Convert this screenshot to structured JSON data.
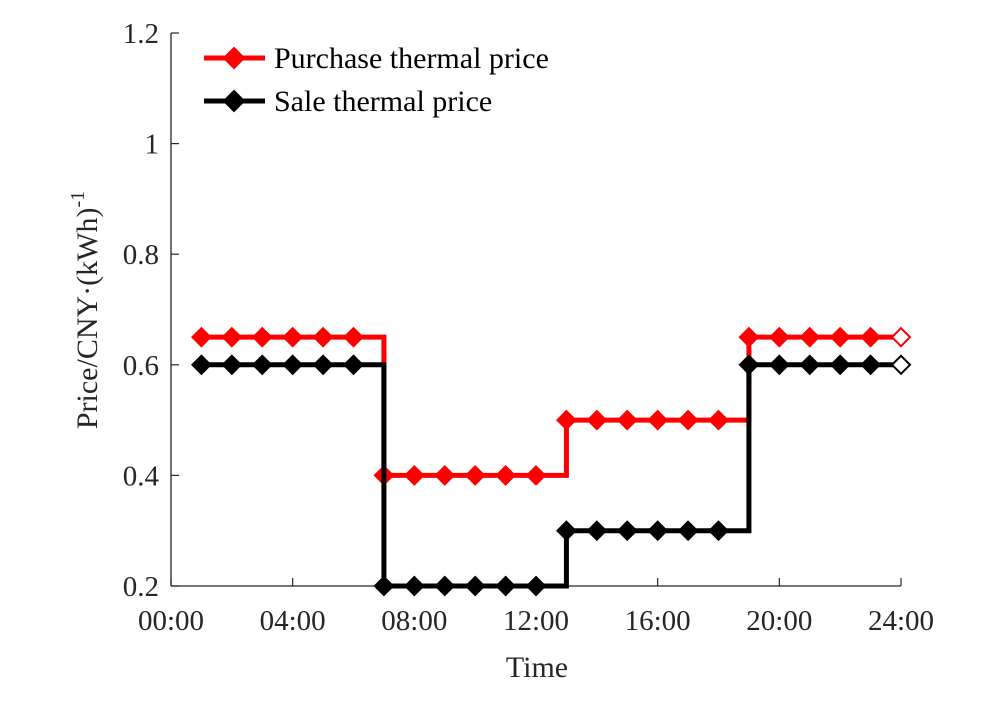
{
  "chart_data": {
    "type": "line",
    "step": "post",
    "xlabel": "Time",
    "ylabel": "Price/CNY·(kWh)",
    "ylabel_superscript": "-1",
    "xlim": [
      0,
      24
    ],
    "ylim": [
      0.2,
      1.2
    ],
    "x_ticks": [
      0,
      4,
      8,
      12,
      16,
      20,
      24
    ],
    "x_tick_labels": [
      "00:00",
      "04:00",
      "08:00",
      "12:00",
      "16:00",
      "20:00",
      "24:00"
    ],
    "y_ticks": [
      0.2,
      0.4,
      0.6,
      0.8,
      1.0,
      1.2
    ],
    "y_tick_labels": [
      "0.2",
      "0.4",
      "0.6",
      "0.8",
      "1",
      "1.2"
    ],
    "legend_position": "top-left",
    "grid": false,
    "x": [
      1,
      2,
      3,
      4,
      5,
      6,
      7,
      8,
      9,
      10,
      11,
      12,
      13,
      14,
      15,
      16,
      17,
      18,
      19,
      20,
      21,
      22,
      23,
      24
    ],
    "series": [
      {
        "name": "Purchase thermal price",
        "color": "#ff0000",
        "marker": "diamond",
        "values": [
          0.65,
          0.65,
          0.65,
          0.65,
          0.65,
          0.65,
          0.4,
          0.4,
          0.4,
          0.4,
          0.4,
          0.4,
          0.5,
          0.5,
          0.5,
          0.5,
          0.5,
          0.5,
          0.65,
          0.65,
          0.65,
          0.65,
          0.65,
          0.65
        ]
      },
      {
        "name": "Sale thermal price",
        "color": "#000000",
        "marker": "diamond",
        "values": [
          0.6,
          0.6,
          0.6,
          0.6,
          0.6,
          0.6,
          0.2,
          0.2,
          0.2,
          0.2,
          0.2,
          0.2,
          0.3,
          0.3,
          0.3,
          0.3,
          0.3,
          0.3,
          0.6,
          0.6,
          0.6,
          0.6,
          0.6,
          0.6
        ]
      }
    ]
  }
}
